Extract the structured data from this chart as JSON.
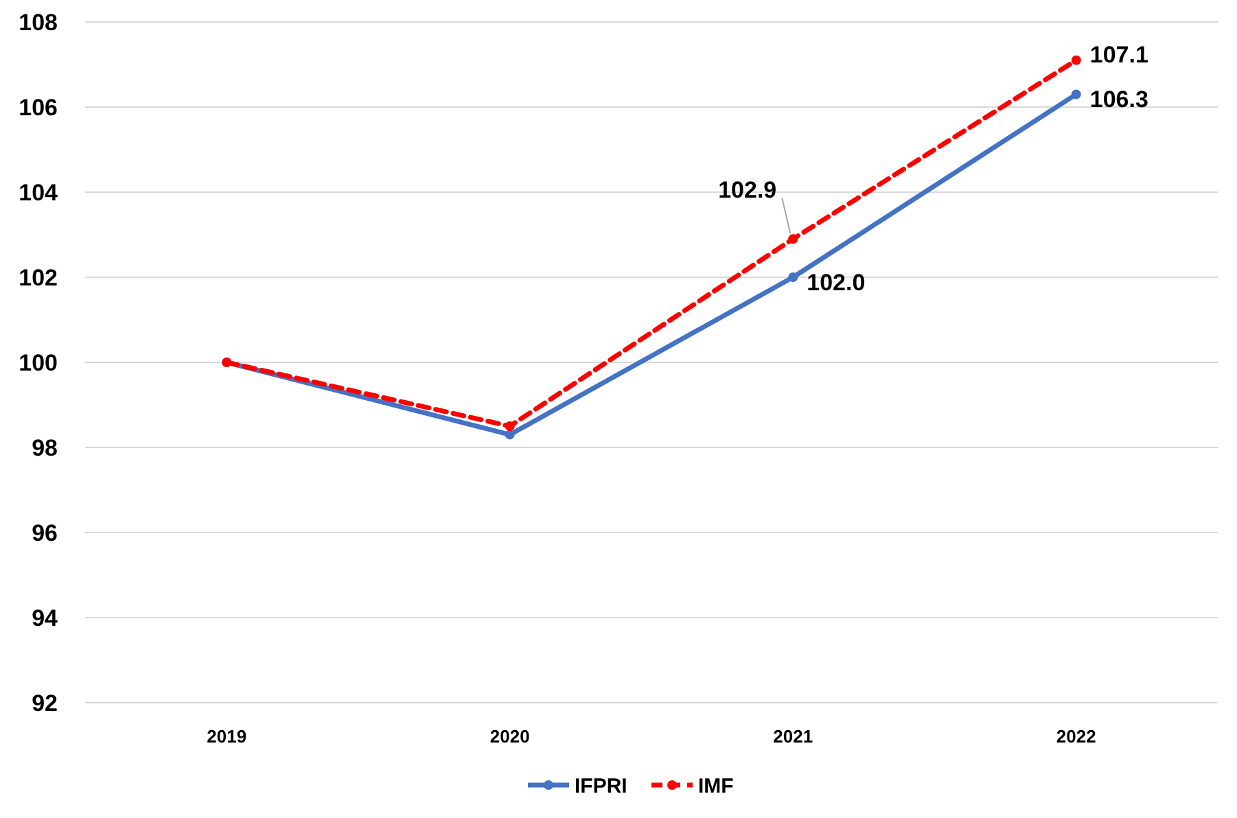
{
  "chart_data": {
    "type": "line",
    "categories": [
      "2019",
      "2020",
      "2021",
      "2022"
    ],
    "series": [
      {
        "name": "IFPRI",
        "color": "#4472c4",
        "values": [
          100,
          98.3,
          102.0,
          106.3
        ],
        "line_style": "solid",
        "value_labels": [
          null,
          null,
          "102.0",
          "106.3"
        ]
      },
      {
        "name": "IMF",
        "color": "#ff0000",
        "values": [
          100,
          98.5,
          102.9,
          107.1
        ],
        "line_style": "dashed",
        "value_labels": [
          null,
          null,
          "102.9",
          "107.1"
        ]
      }
    ],
    "ylim": [
      92,
      108
    ],
    "yticks": [
      92,
      94,
      96,
      98,
      100,
      102,
      104,
      106,
      108
    ],
    "grid": "y",
    "legend": "bottom",
    "marker": "circle"
  }
}
